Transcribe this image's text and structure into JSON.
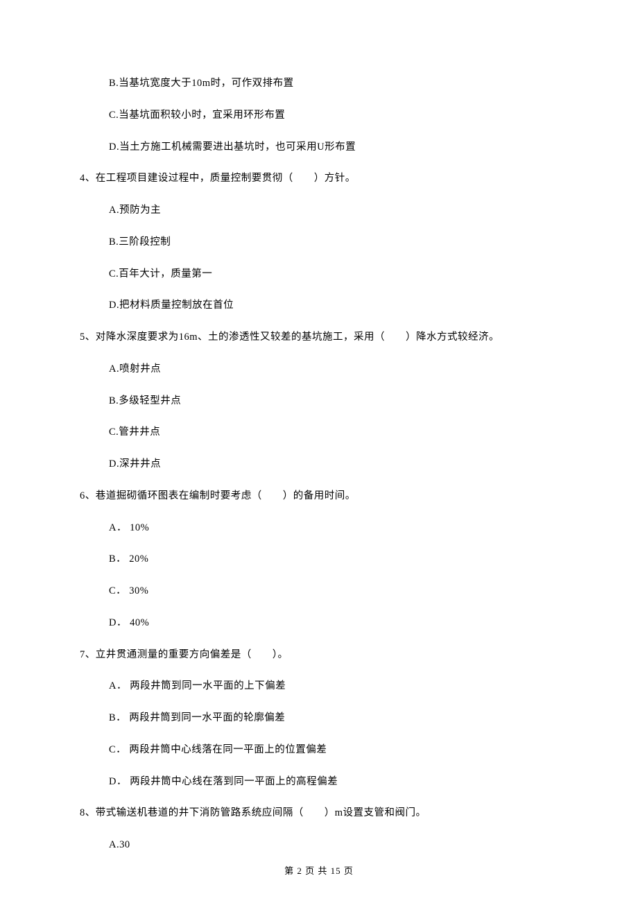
{
  "q3_continued": {
    "options": [
      "B.当基坑宽度大于10m时，可作双排布置",
      "C.当基坑面积较小时，宜采用环形布置",
      "D.当土方施工机械需要进出基坑时，也可采用U形布置"
    ]
  },
  "q4": {
    "stem": "4、在工程项目建设过程中，质量控制要贯彻（　　）方针。",
    "options": [
      "A.预防为主",
      "B.三阶段控制",
      "C.百年大计，质量第一",
      "D.把材料质量控制放在首位"
    ]
  },
  "q5": {
    "stem": "5、对降水深度要求为16m、土的渗透性又较差的基坑施工，采用（　　）降水方式较经济。",
    "options": [
      "A.喷射井点",
      "B.多级轻型井点",
      "C.管井井点",
      "D.深井井点"
    ]
  },
  "q6": {
    "stem": "6、巷道掘砌循环图表在编制时要考虑（　　）的备用时间。",
    "options": [
      "A． 10%",
      "B． 20%",
      "C． 30%",
      "D． 40%"
    ]
  },
  "q7": {
    "stem": "7、立井贯通测量的重要方向偏差是（　　）。",
    "options": [
      "A． 两段井筒到同一水平面的上下偏差",
      "B． 两段井筒到同一水平面的轮廓偏差",
      "C． 两段井筒中心线落在同一平面上的位置偏差",
      "D． 两段井筒中心线在落到同一平面上的高程偏差"
    ]
  },
  "q8": {
    "stem": "8、带式输送机巷道的井下消防管路系统应间隔（　　）m设置支管和阀门。",
    "options": [
      "A.30"
    ]
  },
  "footer": "第 2 页 共 15 页"
}
